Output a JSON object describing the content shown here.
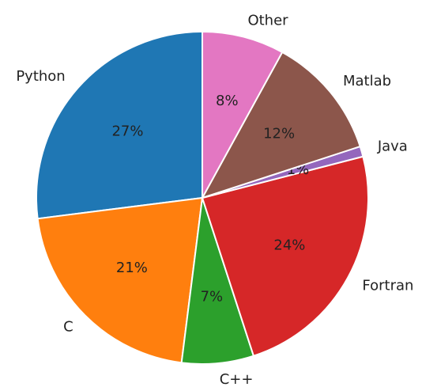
{
  "chart_data": {
    "type": "pie",
    "categories": [
      "Python",
      "C",
      "C++",
      "Fortran",
      "Java",
      "Matlab",
      "Other"
    ],
    "values": [
      27,
      21,
      7,
      24,
      1,
      12,
      8
    ],
    "value_labels": [
      "27%",
      "21%",
      "7%",
      "24%",
      "1%",
      "12%",
      "8%"
    ],
    "colors": [
      "#1f77b4",
      "#ff7f0e",
      "#2ca02c",
      "#d62728",
      "#9467bd",
      "#8c564b",
      "#e377c2"
    ],
    "start_angle": 90,
    "counterclockwise": true
  }
}
